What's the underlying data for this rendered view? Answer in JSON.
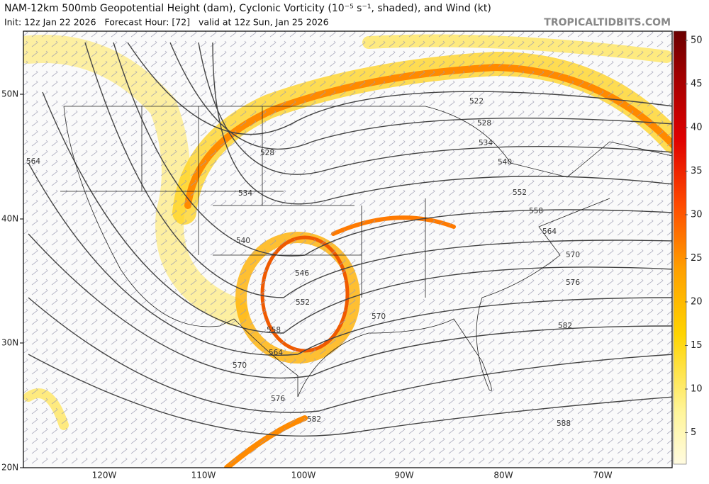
{
  "header": {
    "title": "NAM-12km 500mb Geopotential Height (dam), Cyclonic Vorticity (10⁻⁵ s⁻¹, shaded), and Wind (kt)",
    "subtitle": "Init: 12z Jan 22 2026   Forecast Hour: [72]   valid at 12z Sun, Jan 25 2026",
    "brand": "TROPICALTIDBITS.COM"
  },
  "map": {
    "lat_labels": [
      "50N",
      "40N",
      "30N",
      "20N"
    ],
    "lon_labels": [
      "120W",
      "110W",
      "100W",
      "90W",
      "80W",
      "70W"
    ],
    "contour_labels": [
      "522",
      "528",
      "534",
      "540",
      "552",
      "558",
      "564",
      "570",
      "576",
      "582",
      "588",
      "528",
      "534",
      "540",
      "546",
      "552",
      "558",
      "564",
      "570",
      "576",
      "582",
      "570",
      "564"
    ]
  },
  "colorbar": {
    "ticks": [
      50,
      45,
      40,
      35,
      30,
      25,
      20,
      15,
      10,
      5
    ]
  }
}
